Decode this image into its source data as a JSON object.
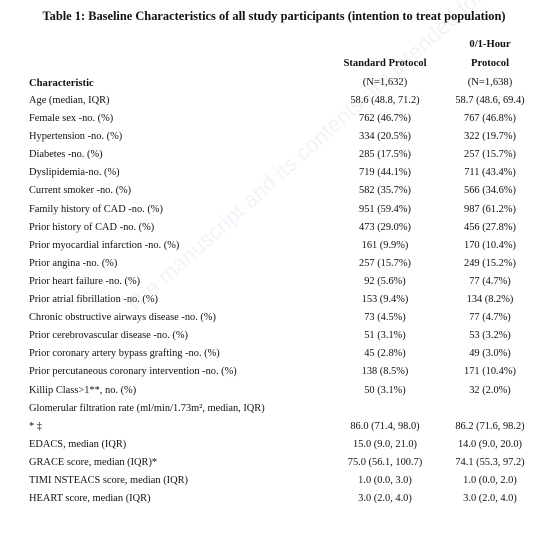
{
  "title": "Table 1: Baseline Characteristics of all study participants (intention to treat population)",
  "headers": {
    "characteristic": "Characteristic",
    "standard": "Standard Protocol",
    "standard_n": "(N=1,632)",
    "fast_line1": "0/1-Hour",
    "fast_line2": "Protocol",
    "fast_n": "(N=1,638)"
  },
  "rows": [
    {
      "label": "Age (median, IQR)",
      "standard": "58.6 (48.8, 71.2)",
      "fast": "58.7 (48.6, 69.4)"
    },
    {
      "label": "Female sex -no. (%)",
      "standard": "762 (46.7%)",
      "fast": "767 (46.8%)"
    },
    {
      "label": "Hypertension -no. (%)",
      "standard": "334 (20.5%)",
      "fast": "322 (19.7%)"
    },
    {
      "label": "Diabetes -no. (%)",
      "standard": "285 (17.5%)",
      "fast": "257 (15.7%)"
    },
    {
      "label": "Dyslipidemia-no.  (%)",
      "standard": "719 (44.1%)",
      "fast": "711 (43.4%)"
    },
    {
      "label": "Current smoker -no. (%)",
      "standard": "582 (35.7%)",
      "fast": "566 (34.6%)"
    },
    {
      "label": "Family history of CAD -no. (%)",
      "standard": "951 (59.4%)",
      "fast": "987 (61.2%)"
    },
    {
      "label": "Prior history of CAD -no. (%)",
      "standard": "473 (29.0%)",
      "fast": "456 (27.8%)"
    },
    {
      "label": "Prior myocardial infarction -no. (%)",
      "standard": "161 (9.9%)",
      "fast": "170 (10.4%)"
    },
    {
      "label": "Prior angina -no. (%)",
      "standard": "257 (15.7%)",
      "fast": "249 (15.2%)"
    },
    {
      "label": "Prior heart failure -no. (%)",
      "standard": "92 (5.6%)",
      "fast": "77 (4.7%)"
    },
    {
      "label": "Prior atrial fibrillation -no. (%)",
      "standard": "153 (9.4%)",
      "fast": "134 (8.2%)"
    },
    {
      "label": "Chronic obstructive airways disease -no. (%)",
      "standard": "73 (4.5%)",
      "fast": "77 (4.7%)"
    },
    {
      "label": "Prior cerebrovascular disease -no. (%)",
      "standard": "51 (3.1%)",
      "fast": "53 (3.2%)"
    },
    {
      "label": "Prior coronary artery bypass grafting -no. (%)",
      "standard": "45 (2.8%)",
      "fast": "49 (3.0%)"
    },
    {
      "label": "Prior percutaneous coronary intervention -no. (%)",
      "standard": "138 (8.5%)",
      "fast": "171 (10.4%)"
    },
    {
      "label": "Killip Class>1**, no. (%)",
      "standard": "50 (3.1%)",
      "fast": "32 (2.0%)"
    },
    {
      "label": "Glomerular filtration rate (ml/min/1.73m², median, IQR)",
      "standard": "",
      "fast": ""
    },
    {
      "label": "* ‡",
      "standard": "86.0 (71.4, 98.0)",
      "fast": "86.2 (71.6, 98.2)"
    },
    {
      "label": "EDACS, median (IQR)",
      "standard": "15.0 (9.0, 21.0)",
      "fast": "14.0 (9.0, 20.0)"
    },
    {
      "label": "GRACE score, median (IQR)*",
      "standard": "75.0 (56.1, 100.7)",
      "fast": "74.1 (55.3, 97.2)"
    },
    {
      "label": "TIMI NSTEACS score, median (IQR)",
      "standard": "1.0 (0.0, 3.0)",
      "fast": "1.0 (0.0, 2.0)"
    },
    {
      "label": "HEART score, median (IQR)",
      "standard": "3.0 (2.0, 4.0)",
      "fast": "3.0 (2.0, 4.0)"
    }
  ],
  "watermark": "The manuscript and its contents are intended for journal purposes, and not to be further disclosed"
}
